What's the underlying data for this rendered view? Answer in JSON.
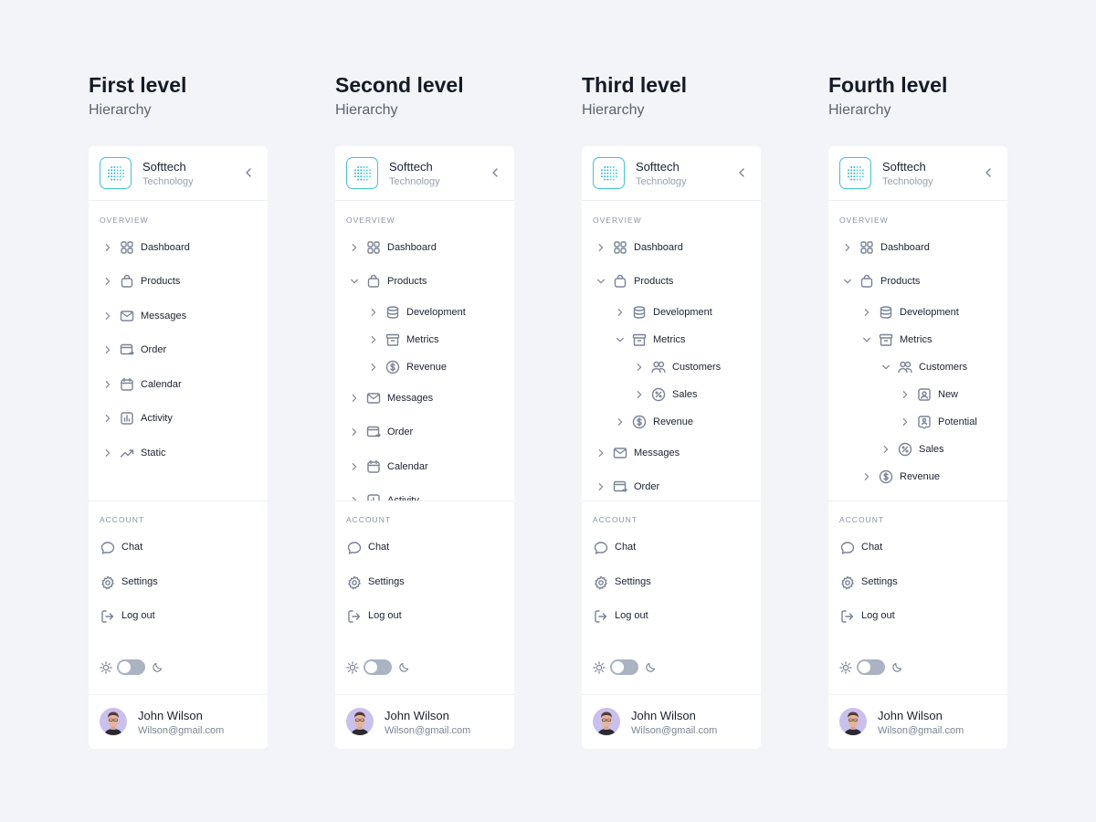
{
  "panels": [
    {
      "title": "First level",
      "subtitle": "Hierarchy",
      "nav": [
        {
          "level": 0,
          "expanded": false,
          "icon": "grid",
          "label": "Dashboard"
        },
        {
          "level": 0,
          "expanded": false,
          "icon": "bag",
          "label": "Products"
        },
        {
          "level": 0,
          "expanded": false,
          "icon": "mail",
          "label": "Messages"
        },
        {
          "level": 0,
          "expanded": false,
          "icon": "order",
          "label": "Order"
        },
        {
          "level": 0,
          "expanded": false,
          "icon": "calendar",
          "label": "Calendar"
        },
        {
          "level": 0,
          "expanded": false,
          "icon": "activity",
          "label": "Activity"
        },
        {
          "level": 0,
          "expanded": false,
          "icon": "trend",
          "label": "Static"
        }
      ]
    },
    {
      "title": "Second level",
      "subtitle": "Hierarchy",
      "nav": [
        {
          "level": 0,
          "expanded": false,
          "icon": "grid",
          "label": "Dashboard"
        },
        {
          "level": 0,
          "expanded": true,
          "icon": "bag",
          "label": "Products"
        },
        {
          "level": 1,
          "expanded": false,
          "icon": "database",
          "label": "Development"
        },
        {
          "level": 1,
          "expanded": false,
          "icon": "archive",
          "label": "Metrics"
        },
        {
          "level": 1,
          "expanded": false,
          "icon": "dollar",
          "label": "Revenue"
        },
        {
          "level": 0,
          "expanded": false,
          "icon": "mail",
          "label": "Messages"
        },
        {
          "level": 0,
          "expanded": false,
          "icon": "order",
          "label": "Order"
        },
        {
          "level": 0,
          "expanded": false,
          "icon": "calendar",
          "label": "Calendar"
        },
        {
          "level": 0,
          "expanded": false,
          "icon": "activity",
          "label": "Activity"
        }
      ]
    },
    {
      "title": "Third level",
      "subtitle": "Hierarchy",
      "nav": [
        {
          "level": 0,
          "expanded": false,
          "icon": "grid",
          "label": "Dashboard"
        },
        {
          "level": 0,
          "expanded": true,
          "icon": "bag",
          "label": "Products"
        },
        {
          "level": 1,
          "expanded": false,
          "icon": "database",
          "label": "Development"
        },
        {
          "level": 1,
          "expanded": true,
          "icon": "archive",
          "label": "Metrics"
        },
        {
          "level": 2,
          "expanded": false,
          "icon": "users",
          "label": "Customers"
        },
        {
          "level": 2,
          "expanded": false,
          "icon": "percent",
          "label": "Sales"
        },
        {
          "level": 1,
          "expanded": false,
          "icon": "dollar",
          "label": "Revenue"
        },
        {
          "level": 0,
          "expanded": false,
          "icon": "mail",
          "label": "Messages"
        },
        {
          "level": 0,
          "expanded": false,
          "icon": "order",
          "label": "Order"
        }
      ]
    },
    {
      "title": "Fourth level",
      "subtitle": "Hierarchy",
      "nav": [
        {
          "level": 0,
          "expanded": false,
          "icon": "grid",
          "label": "Dashboard"
        },
        {
          "level": 0,
          "expanded": true,
          "icon": "bag",
          "label": "Products"
        },
        {
          "level": 1,
          "expanded": false,
          "icon": "database",
          "label": "Development"
        },
        {
          "level": 1,
          "expanded": true,
          "icon": "archive",
          "label": "Metrics"
        },
        {
          "level": 2,
          "expanded": true,
          "icon": "users",
          "label": "Customers"
        },
        {
          "level": 3,
          "expanded": false,
          "icon": "user-square",
          "label": "New"
        },
        {
          "level": 3,
          "expanded": false,
          "icon": "user-pin",
          "label": "Potential"
        },
        {
          "level": 2,
          "expanded": false,
          "icon": "percent",
          "label": "Sales"
        },
        {
          "level": 1,
          "expanded": false,
          "icon": "dollar",
          "label": "Revenue"
        }
      ]
    }
  ],
  "brand": {
    "name": "Softtech",
    "tagline": "Technology",
    "accent": "#3fc3d6"
  },
  "overview_label": "OVERVIEW",
  "account_label": "ACCOUNT",
  "account": [
    {
      "icon": "chat",
      "label": "Chat"
    },
    {
      "icon": "gear",
      "label": "Settings"
    },
    {
      "icon": "logout",
      "label": "Log out"
    }
  ],
  "theme": {
    "mode": "light"
  },
  "user": {
    "name": "John Wilson",
    "email": "Wilson@gmail.com"
  }
}
